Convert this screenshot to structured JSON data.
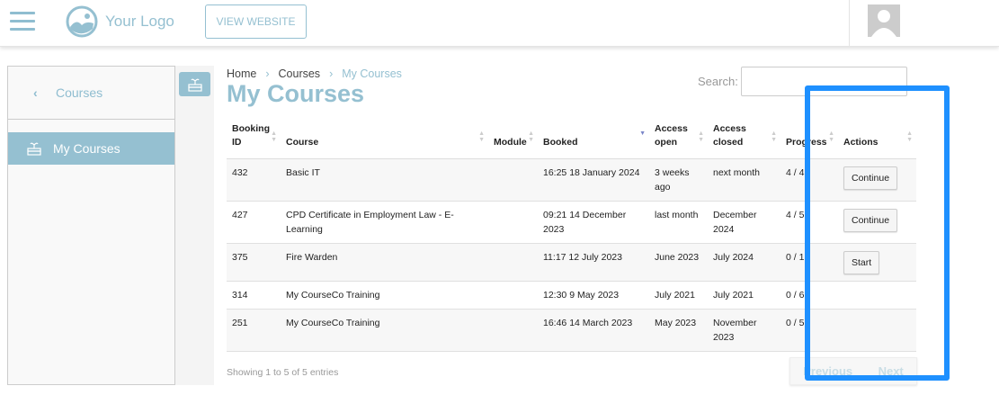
{
  "header": {
    "logo_text": "Your Logo",
    "view_website": "VIEW WEBSITE"
  },
  "sidebar": {
    "back_label": "Courses",
    "items": [
      {
        "label": "My Courses",
        "active": true
      }
    ]
  },
  "breadcrumb": [
    "Home",
    "Courses",
    "My Courses"
  ],
  "page_title": "My Courses",
  "search": {
    "label": "Search:",
    "value": ""
  },
  "table": {
    "columns": [
      {
        "label": "Booking ID",
        "l1": "Booking",
        "l2": "ID"
      },
      {
        "label": "Course"
      },
      {
        "label": "Module"
      },
      {
        "label": "Booked",
        "sorted": "desc"
      },
      {
        "label": "Access open",
        "l1": "Access",
        "l2": "open"
      },
      {
        "label": "Access closed",
        "l1": "Access",
        "l2": "closed"
      },
      {
        "label": "Progress"
      },
      {
        "label": "Actions"
      }
    ],
    "rows": [
      {
        "id": "432",
        "course": "Basic IT",
        "module": "",
        "booked": "16:25 18 January 2024",
        "open": "3 weeks ago",
        "closed": "next month",
        "progress": "4 / 4",
        "action": "Continue"
      },
      {
        "id": "427",
        "course": "CPD Certificate in Employment Law - E-Learning",
        "module": "",
        "booked": "09:21 14 December 2023",
        "open": "last month",
        "closed": "December 2024",
        "progress": "4 / 5",
        "action": "Continue"
      },
      {
        "id": "375",
        "course": "Fire Warden",
        "module": "",
        "booked": "11:17 12 July 2023",
        "open": "June 2023",
        "closed": "July 2024",
        "progress": "0 / 1",
        "action": "Start"
      },
      {
        "id": "314",
        "course": "My CourseCo Training",
        "module": "",
        "booked": "12:30 9 May 2023",
        "open": "July 2021",
        "closed": "July 2021",
        "progress": "0 / 6",
        "action": ""
      },
      {
        "id": "251",
        "course": "My CourseCo Training",
        "module": "",
        "booked": "16:46 14 March 2023",
        "open": "May 2023",
        "closed": "November 2023",
        "progress": "0 / 5",
        "action": ""
      }
    ]
  },
  "footer": {
    "info": "Showing 1 to 5 of 5 entries",
    "previous": "Previous",
    "next": "Next"
  },
  "colors": {
    "accent": "#95c0d1",
    "annotation": "#1e90ff"
  }
}
